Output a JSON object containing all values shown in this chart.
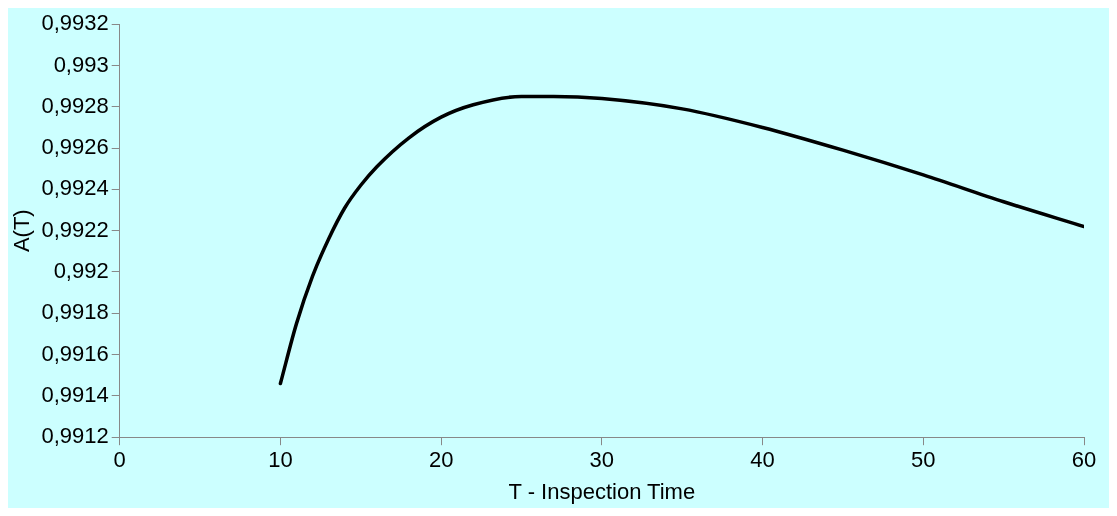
{
  "chart_data": {
    "type": "line",
    "xlabel": "T - Inspection Time",
    "ylabel": "A(T)",
    "series": [
      {
        "color": "#000000",
        "x": [
          10,
          11,
          12,
          13,
          14,
          15,
          16,
          18,
          20,
          22,
          25,
          27,
          30,
          35,
          40,
          45,
          50,
          55,
          60
        ],
        "values": [
          0.99146,
          0.99175,
          0.99198,
          0.99216,
          0.99231,
          0.99242,
          0.99251,
          0.99265,
          0.99275,
          0.99281,
          0.99285,
          0.99285,
          0.99284,
          0.99279,
          0.9927,
          0.99259,
          0.99247,
          0.99234,
          0.99222
        ]
      }
    ],
    "xlim": [
      0,
      60
    ],
    "xticks": [
      0,
      10,
      20,
      30,
      40,
      50,
      60
    ],
    "ylim": [
      0.9912,
      0.9932
    ],
    "yticks": [
      {
        "value": 0.9912,
        "label": "0,9912"
      },
      {
        "value": 0.9914,
        "label": "0,9914"
      },
      {
        "value": 0.9916,
        "label": "0,9916"
      },
      {
        "value": 0.9918,
        "label": "0,9918"
      },
      {
        "value": 0.992,
        "label": "0,992"
      },
      {
        "value": 0.9922,
        "label": "0,9922"
      },
      {
        "value": 0.9924,
        "label": "0,9924"
      },
      {
        "value": 0.9926,
        "label": "0,9926"
      },
      {
        "value": 0.9928,
        "label": "0,9928"
      },
      {
        "value": 0.993,
        "label": "0,993"
      },
      {
        "value": 0.9932,
        "label": "0,9932"
      }
    ],
    "grid": false,
    "legend": false,
    "marker": "none",
    "line_style": "solid"
  }
}
